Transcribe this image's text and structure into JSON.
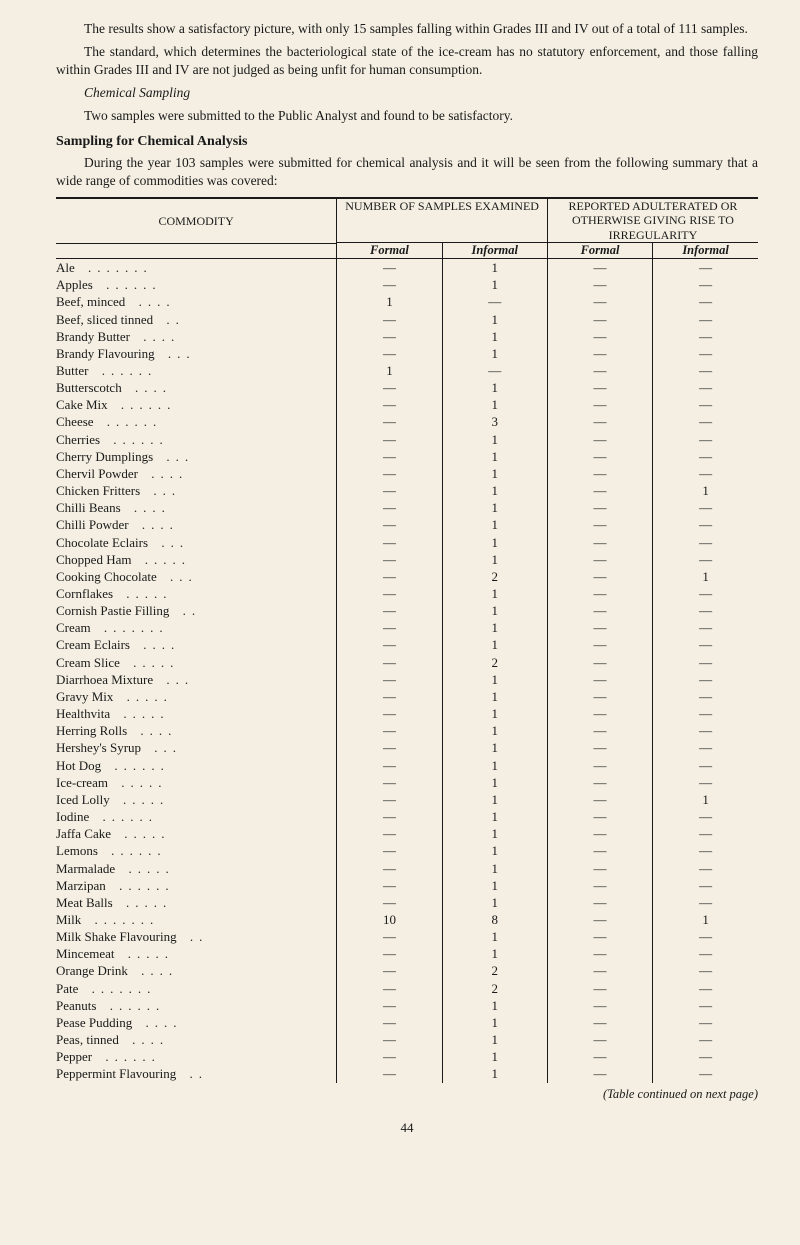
{
  "paragraphs": {
    "p1": "The results show a satisfactory picture, with only 15 samples falling within Grades III and IV out of a total of 111 samples.",
    "p2": "The standard, which determines the bacteriological state of the ice-cream has no statutory enforcement, and those falling within Grades III and IV are not judged as being unfit for human consumption.",
    "p3_head": "Chemical Sampling",
    "p3": "Two samples were submitted to the Public Analyst and found to be satisfactory.",
    "p4_head": "Sampling for Chemical Analysis",
    "p4": "During the year 103 samples were submitted for chemical analysis and it will be seen from the following summary that a wide range of commodities was covered:"
  },
  "table": {
    "headers": {
      "commodity": "COMMODITY",
      "examined": "NUMBER OF SAMPLES EXAMINED",
      "reported": "REPORTED ADULTERATED OR OTHERWISE GIVING RISE TO IRREGULARITY",
      "formal": "Formal",
      "informal": "Informal"
    },
    "rows": [
      {
        "name": "Ale",
        "f1": "—",
        "i1": "1",
        "f2": "—",
        "i2": "—"
      },
      {
        "name": "Apples",
        "f1": "—",
        "i1": "1",
        "f2": "—",
        "i2": "—"
      },
      {
        "name": "Beef, minced",
        "f1": "1",
        "i1": "—",
        "f2": "—",
        "i2": "—"
      },
      {
        "name": "Beef, sliced tinned",
        "f1": "—",
        "i1": "1",
        "f2": "—",
        "i2": "—"
      },
      {
        "name": "Brandy Butter",
        "f1": "—",
        "i1": "1",
        "f2": "—",
        "i2": "—"
      },
      {
        "name": "Brandy Flavouring",
        "f1": "—",
        "i1": "1",
        "f2": "—",
        "i2": "—"
      },
      {
        "name": "Butter",
        "f1": "1",
        "i1": "—",
        "f2": "—",
        "i2": "—"
      },
      {
        "name": "Butterscotch",
        "f1": "—",
        "i1": "1",
        "f2": "—",
        "i2": "—"
      },
      {
        "name": "Cake Mix",
        "f1": "—",
        "i1": "1",
        "f2": "—",
        "i2": "—"
      },
      {
        "name": "Cheese",
        "f1": "—",
        "i1": "3",
        "f2": "—",
        "i2": "—"
      },
      {
        "name": "Cherries",
        "f1": "—",
        "i1": "1",
        "f2": "—",
        "i2": "—"
      },
      {
        "name": "Cherry Dumplings",
        "f1": "—",
        "i1": "1",
        "f2": "—",
        "i2": "—"
      },
      {
        "name": "Chervil Powder",
        "f1": "—",
        "i1": "1",
        "f2": "—",
        "i2": "—"
      },
      {
        "name": "Chicken Fritters",
        "f1": "—",
        "i1": "1",
        "f2": "—",
        "i2": "1"
      },
      {
        "name": "Chilli Beans",
        "f1": "—",
        "i1": "1",
        "f2": "—",
        "i2": "—"
      },
      {
        "name": "Chilli Powder",
        "f1": "—",
        "i1": "1",
        "f2": "—",
        "i2": "—"
      },
      {
        "name": "Chocolate Eclairs",
        "f1": "—",
        "i1": "1",
        "f2": "—",
        "i2": "—"
      },
      {
        "name": "Chopped Ham",
        "f1": "—",
        "i1": "1",
        "f2": "—",
        "i2": "—"
      },
      {
        "name": "Cooking Chocolate",
        "f1": "—",
        "i1": "2",
        "f2": "—",
        "i2": "1"
      },
      {
        "name": "Cornflakes",
        "f1": "—",
        "i1": "1",
        "f2": "—",
        "i2": "—"
      },
      {
        "name": "Cornish Pastie Filling",
        "f1": "—",
        "i1": "1",
        "f2": "—",
        "i2": "—"
      },
      {
        "name": "Cream",
        "f1": "—",
        "i1": "1",
        "f2": "—",
        "i2": "—"
      },
      {
        "name": "Cream Eclairs",
        "f1": "—",
        "i1": "1",
        "f2": "—",
        "i2": "—"
      },
      {
        "name": "Cream Slice",
        "f1": "—",
        "i1": "2",
        "f2": "—",
        "i2": "—"
      },
      {
        "name": "Diarrhoea Mixture",
        "f1": "—",
        "i1": "1",
        "f2": "—",
        "i2": "—"
      },
      {
        "name": "Gravy Mix",
        "f1": "—",
        "i1": "1",
        "f2": "—",
        "i2": "—"
      },
      {
        "name": "Healthvita",
        "f1": "—",
        "i1": "1",
        "f2": "—",
        "i2": "—"
      },
      {
        "name": "Herring Rolls",
        "f1": "—",
        "i1": "1",
        "f2": "—",
        "i2": "—"
      },
      {
        "name": "Hershey's Syrup",
        "f1": "—",
        "i1": "1",
        "f2": "—",
        "i2": "—"
      },
      {
        "name": "Hot Dog",
        "f1": "—",
        "i1": "1",
        "f2": "—",
        "i2": "—"
      },
      {
        "name": "Ice-cream",
        "f1": "—",
        "i1": "1",
        "f2": "—",
        "i2": "—"
      },
      {
        "name": "Iced Lolly",
        "f1": "—",
        "i1": "1",
        "f2": "—",
        "i2": "1"
      },
      {
        "name": "Iodine",
        "f1": "—",
        "i1": "1",
        "f2": "—",
        "i2": "—"
      },
      {
        "name": "Jaffa Cake",
        "f1": "—",
        "i1": "1",
        "f2": "—",
        "i2": "—"
      },
      {
        "name": "Lemons",
        "f1": "—",
        "i1": "1",
        "f2": "—",
        "i2": "—"
      },
      {
        "name": "Marmalade",
        "f1": "—",
        "i1": "1",
        "f2": "—",
        "i2": "—"
      },
      {
        "name": "Marzipan",
        "f1": "—",
        "i1": "1",
        "f2": "—",
        "i2": "—"
      },
      {
        "name": "Meat Balls",
        "f1": "—",
        "i1": "1",
        "f2": "—",
        "i2": "—"
      },
      {
        "name": "Milk",
        "f1": "10",
        "i1": "8",
        "f2": "—",
        "i2": "1"
      },
      {
        "name": "Milk Shake Flavouring",
        "f1": "—",
        "i1": "1",
        "f2": "—",
        "i2": "—"
      },
      {
        "name": "Mincemeat",
        "f1": "—",
        "i1": "1",
        "f2": "—",
        "i2": "—"
      },
      {
        "name": "Orange Drink",
        "f1": "—",
        "i1": "2",
        "f2": "—",
        "i2": "—"
      },
      {
        "name": "Pate",
        "f1": "—",
        "i1": "2",
        "f2": "—",
        "i2": "—"
      },
      {
        "name": "Peanuts",
        "f1": "—",
        "i1": "1",
        "f2": "—",
        "i2": "—"
      },
      {
        "name": "Pease Pudding",
        "f1": "—",
        "i1": "1",
        "f2": "—",
        "i2": "—"
      },
      {
        "name": "Peas, tinned",
        "f1": "—",
        "i1": "1",
        "f2": "—",
        "i2": "—"
      },
      {
        "name": "Pepper",
        "f1": "—",
        "i1": "1",
        "f2": "—",
        "i2": "—"
      },
      {
        "name": "Peppermint Flavouring",
        "f1": "—",
        "i1": "1",
        "f2": "—",
        "i2": "—"
      }
    ]
  },
  "footnote": "(Table continued on next page)",
  "pagenum": "44"
}
